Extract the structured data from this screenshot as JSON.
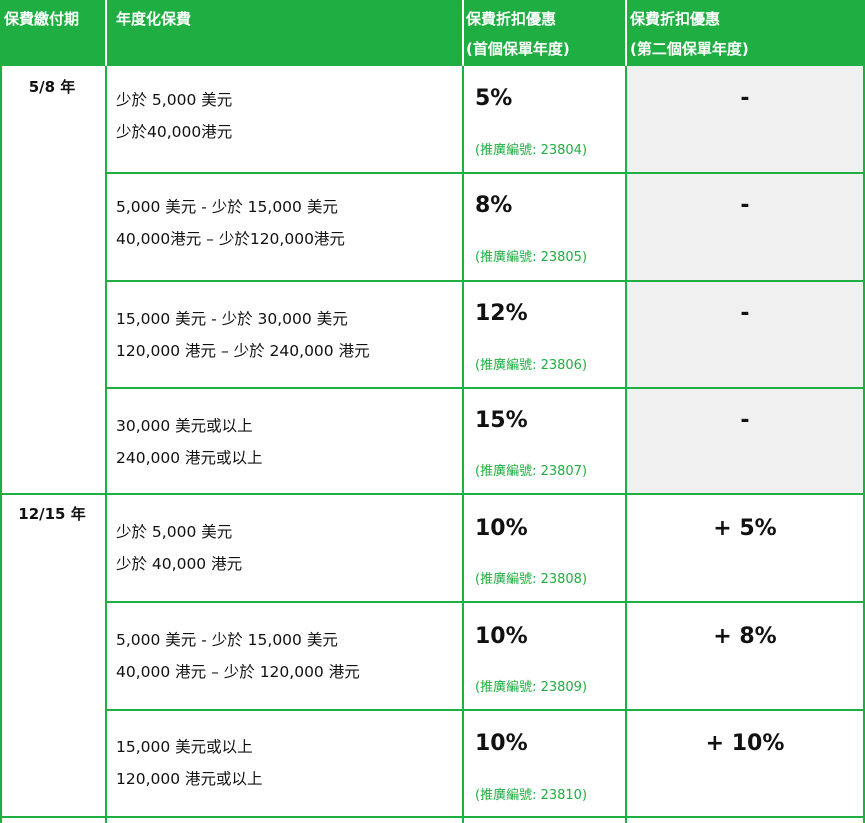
{
  "colors": {
    "accent": "#1fae41",
    "header_text": "#ffffff",
    "grey_cell": "#f0f0f0"
  },
  "header": {
    "col1": "保費繳付期",
    "col2": "年度化保費",
    "col3_line1": "保費折扣優惠",
    "col3_line2": "(首個保單年度)",
    "col4_line1": "保費折扣優惠",
    "col4_line2": "(第二個保單年度)"
  },
  "groups": [
    {
      "term": "5/8 年"
    },
    {
      "term": "12/15 年"
    }
  ],
  "rows": [
    {
      "band_usd": "少於 5,000 美元",
      "band_hkd": "少於40,000港元",
      "first_year_discount": "5%",
      "promo_code": "(推廣編號: 23804)",
      "second_year_discount": "-"
    },
    {
      "band_usd": "5,000 美元 - 少於 15,000 美元",
      "band_hkd": "40,000港元 – 少於120,000港元",
      "first_year_discount": "8%",
      "promo_code": "(推廣編號: 23805)",
      "second_year_discount": "-"
    },
    {
      "band_usd": "15,000 美元 - 少於 30,000 美元",
      "band_hkd": "120,000 港元 – 少於 240,000 港元",
      "first_year_discount": "12%",
      "promo_code": "(推廣編號: 23806)",
      "second_year_discount": "-"
    },
    {
      "band_usd": "30,000 美元或以上",
      "band_hkd": "240,000 港元或以上",
      "first_year_discount": "15%",
      "promo_code": "(推廣編號: 23807)",
      "second_year_discount": "-"
    },
    {
      "band_usd": "少於 5,000 美元",
      "band_hkd": "少於 40,000 港元",
      "first_year_discount": "10%",
      "promo_code": "(推廣編號: 23808)",
      "second_year_discount": "+ 5%"
    },
    {
      "band_usd": "5,000 美元 - 少於 15,000 美元",
      "band_hkd": "40,000 港元 – 少於 120,000 港元",
      "first_year_discount": "10%",
      "promo_code": "(推廣編號: 23809)",
      "second_year_discount": "+ 8%"
    },
    {
      "band_usd": "15,000 美元或以上",
      "band_hkd": "120,000 港元或以上",
      "first_year_discount": "10%",
      "promo_code": "(推廣編號: 23810)",
      "second_year_discount": "+ 10%"
    }
  ]
}
